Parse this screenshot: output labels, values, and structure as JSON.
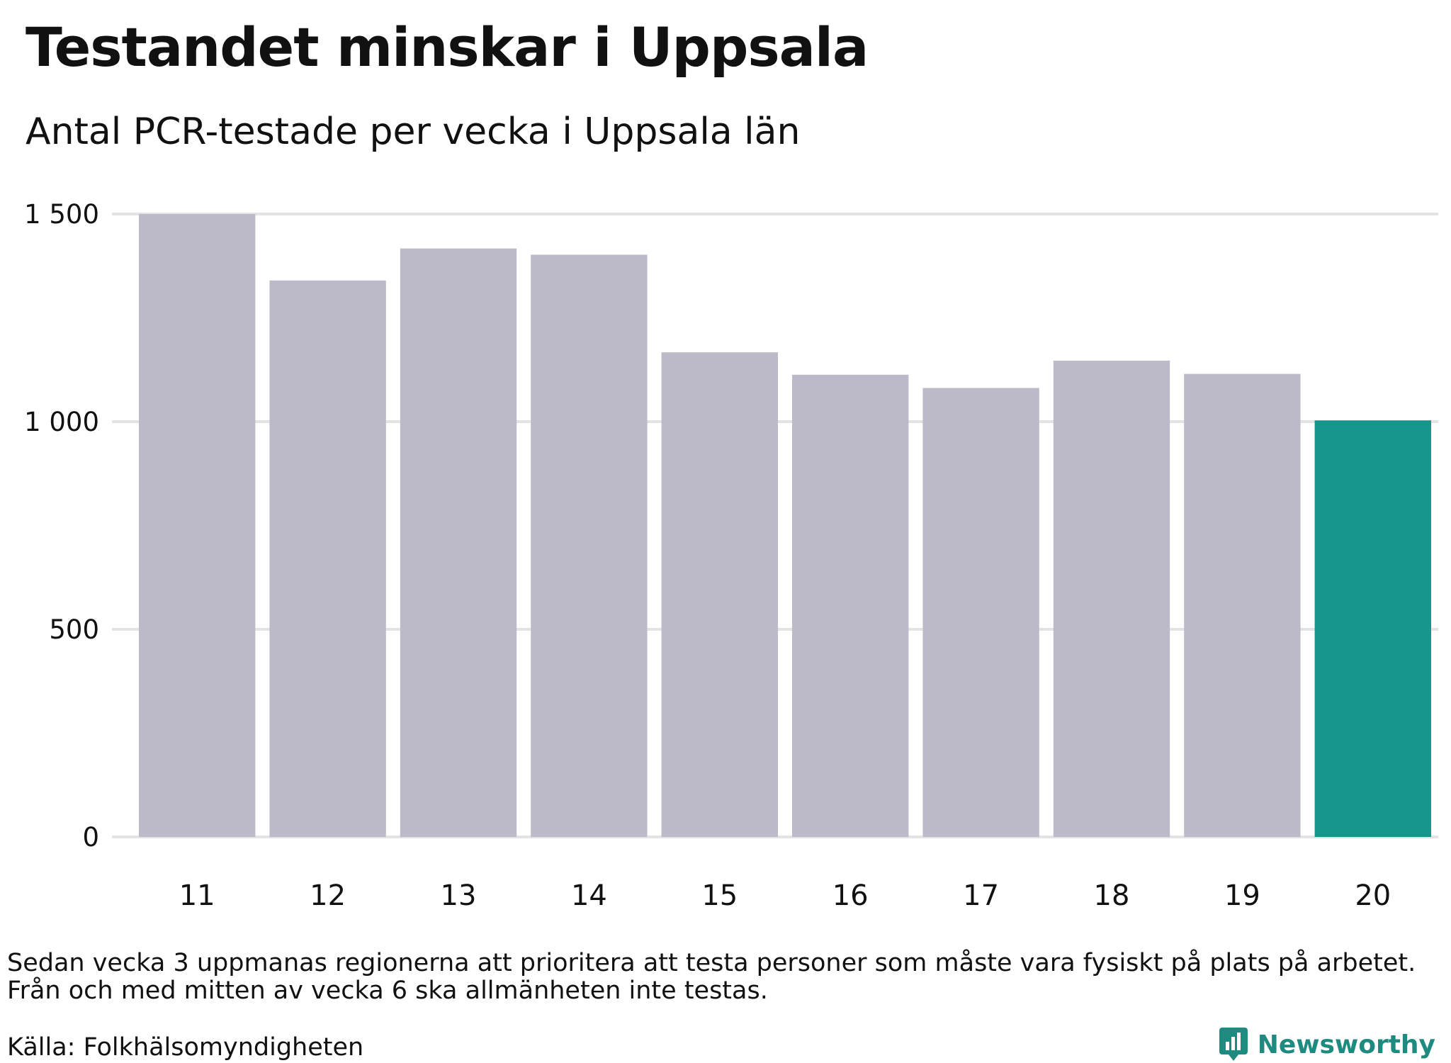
{
  "header": {
    "title": "Testandet minskar i Uppsala",
    "subtitle": "Antal PCR-testade per vecka i Uppsala län"
  },
  "chart_data": {
    "type": "bar",
    "categories": [
      "11",
      "12",
      "13",
      "14",
      "15",
      "16",
      "17",
      "18",
      "19",
      "20"
    ],
    "values": [
      1500,
      1340,
      1417,
      1402,
      1167,
      1113,
      1081,
      1147,
      1115,
      1003
    ],
    "highlight_index": 9,
    "ylim": [
      0,
      1500
    ],
    "yticks": [
      {
        "value": 0,
        "label": "0"
      },
      {
        "value": 500,
        "label": "500"
      },
      {
        "value": 1000,
        "label": "1 000"
      },
      {
        "value": 1500,
        "label": "1 500"
      }
    ],
    "grid": true,
    "colors": {
      "bar": "#bcbac8",
      "highlight": "#16968a",
      "grid": "#e3e3e6"
    }
  },
  "footer": {
    "note_lines": [
      "Sedan vecka 3 uppmanas regionerna att prioritera att testa personer som måste vara fysiskt på plats på arbetet.",
      "Från och med mitten av vecka 6 ska allmänheten inte testas."
    ],
    "source": "Källa: Folkhälsomyndigheten"
  },
  "brand": {
    "name": "Newsworthy",
    "color": "#1f8a80",
    "icon": "bar-chart-speech-bubble-icon"
  }
}
